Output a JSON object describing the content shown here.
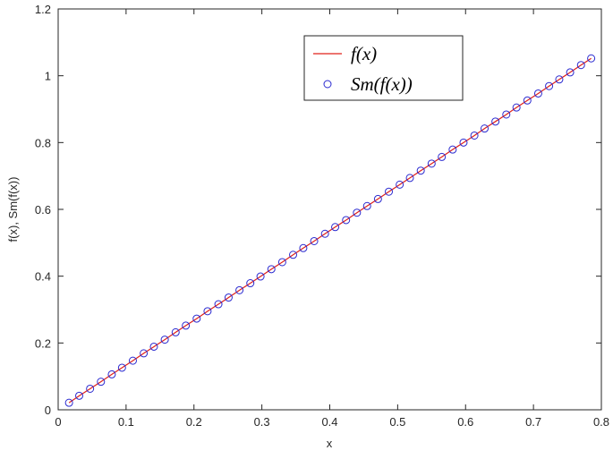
{
  "chart_data": {
    "type": "line",
    "xlabel": "x",
    "ylabel": "f(x), Sm(f(x))",
    "x": [
      0.016,
      0.031,
      0.047,
      0.063,
      0.079,
      0.094,
      0.11,
      0.126,
      0.141,
      0.157,
      0.173,
      0.188,
      0.204,
      0.22,
      0.236,
      0.251,
      0.267,
      0.283,
      0.298,
      0.314,
      0.33,
      0.346,
      0.361,
      0.377,
      0.393,
      0.408,
      0.424,
      0.44,
      0.455,
      0.471,
      0.487,
      0.503,
      0.518,
      0.534,
      0.55,
      0.565,
      0.581,
      0.597,
      0.613,
      0.628,
      0.644,
      0.66,
      0.675,
      0.691,
      0.707,
      0.723,
      0.738,
      0.754,
      0.77,
      0.785
    ],
    "series": [
      {
        "name": "f(x)",
        "color": "#e0201a",
        "style": "line",
        "values": [
          0.021,
          0.042,
          0.063,
          0.084,
          0.106,
          0.126,
          0.147,
          0.169,
          0.189,
          0.21,
          0.232,
          0.252,
          0.273,
          0.295,
          0.316,
          0.336,
          0.358,
          0.379,
          0.399,
          0.421,
          0.442,
          0.464,
          0.484,
          0.505,
          0.527,
          0.547,
          0.568,
          0.59,
          0.61,
          0.631,
          0.653,
          0.674,
          0.694,
          0.716,
          0.737,
          0.757,
          0.779,
          0.8,
          0.821,
          0.842,
          0.863,
          0.884,
          0.905,
          0.926,
          0.947,
          0.969,
          0.989,
          1.01,
          1.032,
          1.052
        ]
      },
      {
        "name": "Sm(f(x))",
        "color": "#2a2ad0",
        "style": "circle",
        "values": [
          0.021,
          0.042,
          0.063,
          0.084,
          0.106,
          0.126,
          0.147,
          0.169,
          0.189,
          0.21,
          0.232,
          0.252,
          0.273,
          0.295,
          0.316,
          0.336,
          0.358,
          0.379,
          0.399,
          0.421,
          0.442,
          0.464,
          0.484,
          0.505,
          0.527,
          0.547,
          0.568,
          0.59,
          0.61,
          0.631,
          0.653,
          0.674,
          0.694,
          0.716,
          0.737,
          0.757,
          0.779,
          0.8,
          0.821,
          0.842,
          0.863,
          0.884,
          0.905,
          0.926,
          0.947,
          0.969,
          0.989,
          1.01,
          1.032,
          1.052
        ]
      }
    ],
    "xlim": [
      0,
      0.8
    ],
    "xticks": [
      0,
      0.1,
      0.2,
      0.3,
      0.4,
      0.5,
      0.6,
      0.7,
      0.8
    ],
    "ylim": [
      0,
      1.2
    ],
    "yticks": [
      0,
      0.2,
      0.4,
      0.6,
      0.8,
      1,
      1.2
    ],
    "grid": false,
    "legend": "upper-center"
  }
}
